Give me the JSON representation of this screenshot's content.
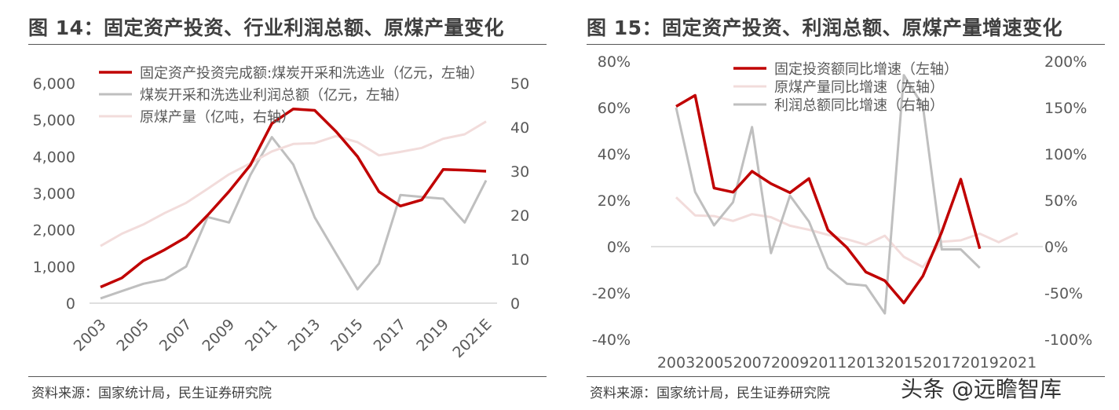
{
  "left": {
    "title": "图 14：固定资产投资、行业利润总额、原煤产量变化",
    "source": "资料来源：国家统计局，民生证券研究院"
  },
  "right": {
    "title": "图 15：固定资产投资、利润总额、原煤产量增速变化",
    "source": "资料来源：国家统计局，民生证券研究院"
  },
  "watermark": "头条 @远瞻智库",
  "chart_data": [
    {
      "type": "line",
      "categories": [
        "2003",
        "2004",
        "2005",
        "2006",
        "2007",
        "2008",
        "2009",
        "2010",
        "2011",
        "2012",
        "2013",
        "2014",
        "2015",
        "2016",
        "2017",
        "2018",
        "2019",
        "2020",
        "2021E"
      ],
      "x_tick_labels": [
        "2003",
        "2005",
        "2007",
        "2009",
        "2011",
        "2013",
        "2015",
        "2017",
        "2019",
        "2021E"
      ],
      "y_left_ticks": [
        "0",
        "1,000",
        "2,000",
        "3,000",
        "4,000",
        "5,000",
        "6,000"
      ],
      "y_right_ticks": [
        "0",
        "10",
        "20",
        "30",
        "40",
        "50"
      ],
      "ylim": [
        0,
        6000
      ],
      "ylim_right": [
        0,
        50
      ],
      "grid": false,
      "legend_position": "top",
      "series": [
        {
          "name": "固定资产投资完成额:煤炭开采和洗选业（亿元，左轴）",
          "axis": "left",
          "color": "#C00000",
          "values": [
            440,
            690,
            1160,
            1460,
            1800,
            2400,
            3050,
            3770,
            4900,
            5300,
            5260,
            4680,
            4000,
            3040,
            2650,
            2820,
            3650,
            3630,
            3600
          ]
        },
        {
          "name": "煤炭开采和洗选业利润总额（亿元，左轴）",
          "axis": "left",
          "color": "#BFBFBF",
          "values": [
            130,
            330,
            530,
            650,
            1000,
            2350,
            2200,
            3500,
            4530,
            3780,
            2340,
            1350,
            380,
            1080,
            2950,
            2900,
            2850,
            2200,
            3350
          ]
        },
        {
          "name": "原煤产量（亿吨，右轴）",
          "axis": "right",
          "color": "#F2DCDB",
          "values": [
            13,
            15.8,
            17.9,
            20.5,
            22.8,
            26,
            29.3,
            31.8,
            34.5,
            36.2,
            36.4,
            38,
            36.6,
            33.6,
            34.4,
            35.3,
            37.4,
            38.4,
            41.3
          ]
        }
      ]
    },
    {
      "type": "line",
      "categories": [
        "2003",
        "2004",
        "2005",
        "2006",
        "2007",
        "2008",
        "2009",
        "2010",
        "2011",
        "2012",
        "2013",
        "2014",
        "2015",
        "2016",
        "2017",
        "2018",
        "2019",
        "2020",
        "2021"
      ],
      "x_tick_labels": [
        "2003",
        "2005",
        "2007",
        "2009",
        "2011",
        "2013",
        "2015",
        "2017",
        "2019",
        "2021"
      ],
      "y_left_ticks": [
        "-40%",
        "-20%",
        "0%",
        "20%",
        "40%",
        "60%",
        "80%"
      ],
      "y_right_ticks": [
        "-100%",
        "-50%",
        "0%",
        "50%",
        "100%",
        "150%",
        "200%"
      ],
      "ylim": [
        -40,
        80
      ],
      "ylim_right": [
        -100,
        200
      ],
      "grid": false,
      "legend_position": "top",
      "series": [
        {
          "name": "固定投资额同比增速（左轴）",
          "axis": "left",
          "color": "#C00000",
          "values": [
            60.5,
            65.3,
            25.3,
            23.5,
            32.5,
            27.2,
            23.3,
            29.4,
            7.2,
            -0.4,
            -11,
            -14.7,
            -24.3,
            -12.7,
            6.3,
            29.1,
            -0.9,
            null,
            null
          ]
        },
        {
          "name": "原煤产量同比增速（左轴）",
          "axis": "left",
          "color": "#F2DCDB",
          "values": [
            21.3,
            13.5,
            13.2,
            11.1,
            14,
            12.7,
            9,
            7.3,
            5.1,
            3.2,
            0.8,
            4.7,
            -4.4,
            -8.8,
            2.1,
            2.7,
            5.6,
            1.9,
            5.8
          ]
        },
        {
          "name": "利润总额同比增速（右轴）",
          "axis": "right",
          "color": "#BFBFBF",
          "values": [
            150,
            59,
            23,
            48,
            129,
            -7,
            55,
            27,
            -23,
            -40,
            -42,
            -72,
            185,
            152,
            -3,
            -3,
            -23,
            null,
            null
          ]
        }
      ]
    }
  ]
}
